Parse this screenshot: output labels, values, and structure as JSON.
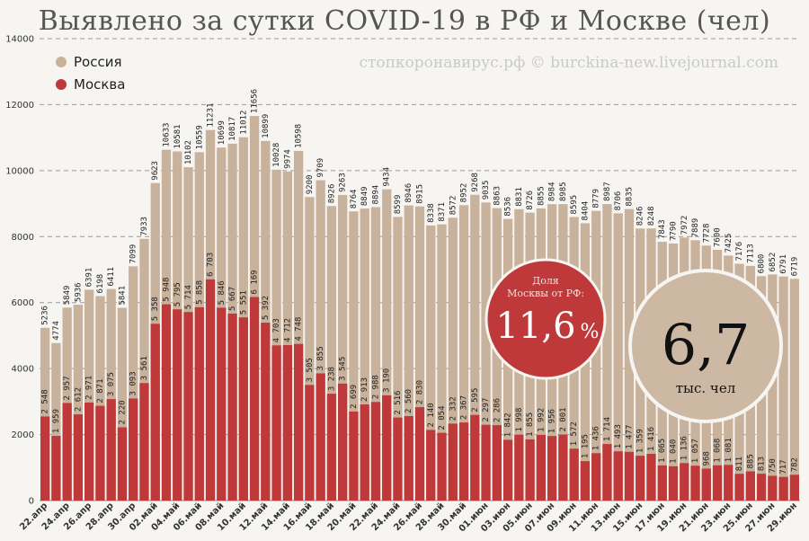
{
  "title": "Выявлено за сутки COVID-19 в РФ и Москве (чел)",
  "watermark": "стопкоронавирус.рф © burckina-new.livejournal.com",
  "callout_share": {
    "label_line1": "Доля",
    "label_line2": "Москвы от РФ:",
    "value": "11,6",
    "unit": "%"
  },
  "callout_total": {
    "value": "6,7",
    "unit": "тыс. чел"
  },
  "chart_data": {
    "type": "bar",
    "ylim": [
      0,
      14000
    ],
    "yticks": [
      0,
      2000,
      4000,
      6000,
      8000,
      10000,
      12000,
      14000
    ],
    "grid": true,
    "legend_position": "top-left",
    "x_tick_labels": [
      "22.апр",
      "24.апр",
      "26.апр",
      "28.апр",
      "30.апр",
      "02.май",
      "04.май",
      "06.май",
      "08.май",
      "10.май",
      "12.май",
      "14.май",
      "16.май",
      "18.май",
      "20.май",
      "22.май",
      "24.май",
      "26.май",
      "28.май",
      "30.май",
      "01.июн",
      "03.июн",
      "05.июн",
      "07.июн",
      "09.июн",
      "11.июн",
      "13.июн",
      "15.июн",
      "17.июн",
      "19.июн",
      "21.июн",
      "23.июн",
      "25.июн",
      "27.июн",
      "29.июн"
    ],
    "series": [
      {
        "name": "Россия",
        "color": "#c9b29b",
        "values": [
          5236,
          4774,
          5849,
          5936,
          6391,
          6198,
          6411,
          5841,
          7099,
          7933,
          9623,
          10633,
          10581,
          10102,
          10559,
          11231,
          10699,
          10817,
          11012,
          11656,
          10899,
          10028,
          9974,
          10598,
          9200,
          9709,
          8926,
          9263,
          8764,
          8849,
          8894,
          9434,
          8599,
          8946,
          8915,
          8338,
          8371,
          8572,
          8952,
          9268,
          9035,
          8863,
          8536,
          8831,
          8726,
          8855,
          8984,
          8985,
          8595,
          8404,
          8779,
          8987,
          8706,
          8835,
          8246,
          8248,
          7843,
          7790,
          7972,
          7889,
          7728,
          7600,
          7425,
          7176,
          7113,
          6800,
          6852,
          6791,
          6719
        ]
      },
      {
        "name": "Москва",
        "color": "#c0393a",
        "values": [
          2548,
          1959,
          2957,
          2612,
          2971,
          2871,
          3075,
          2220,
          3093,
          3561,
          5358,
          5948,
          5795,
          5714,
          5858,
          6703,
          5846,
          5667,
          5551,
          6169,
          5392,
          4703,
          4712,
          4748,
          3505,
          3855,
          3238,
          3545,
          2699,
          2913,
          2988,
          3190,
          2516,
          2560,
          2830,
          2140,
          2054,
          2332,
          2367,
          2595,
          2297,
          2286,
          1842,
          1998,
          1855,
          1992,
          1956,
          2001,
          1572,
          1195,
          1436,
          1714,
          1493,
          1477,
          1359,
          1416,
          1065,
          1040,
          1136,
          1057,
          968,
          1068,
          1081,
          811,
          885,
          813,
          750,
          717,
          782
        ]
      }
    ]
  }
}
